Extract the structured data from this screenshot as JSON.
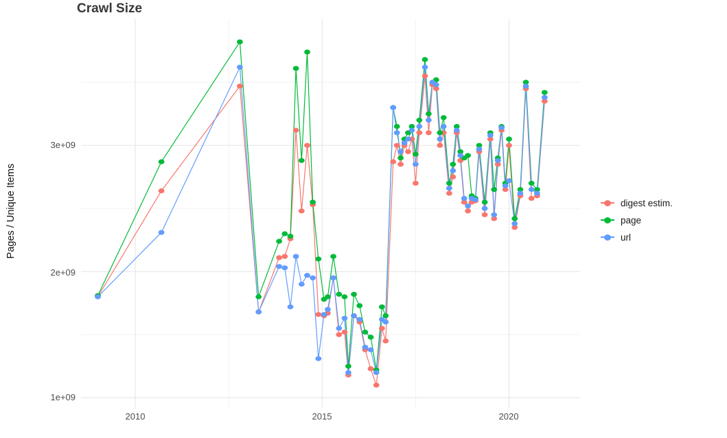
{
  "title": "Crawl Size",
  "colors": {
    "grid_major": "#e4e4e4",
    "grid_minor": "#f2f2f2",
    "axis_text": "#4d4d4d",
    "title_text": "#383838",
    "digest": "#F8766D",
    "page": "#00BA38",
    "url": "#619CFF"
  },
  "chart_data": {
    "type": "line",
    "title": "Crawl Size",
    "xlabel": "",
    "ylabel": "Pages / Unique Items",
    "grid": true,
    "legend_position": "right",
    "xlim": [
      2008.55,
      2021.9
    ],
    "ylim": [
      920000000.0,
      4000000000.0
    ],
    "x_ticks": [
      {
        "value": 2010,
        "label": "2010"
      },
      {
        "value": 2015,
        "label": "2015"
      },
      {
        "value": 2020,
        "label": "2020"
      }
    ],
    "x_minor_ticks": [
      2012.5,
      2017.5
    ],
    "y_ticks": [
      {
        "value": 1000000000.0,
        "label": "1e+09"
      },
      {
        "value": 2000000000.0,
        "label": "2e+09"
      },
      {
        "value": 3000000000.0,
        "label": "3e+09"
      }
    ],
    "y_minor_ticks": [
      1500000000.0,
      2500000000.0,
      3500000000.0
    ],
    "x": [
      2009.0,
      2010.7,
      2012.8,
      2013.3,
      2013.85,
      2014.0,
      2014.15,
      2014.3,
      2014.45,
      2014.6,
      2014.75,
      2014.9,
      2015.05,
      2015.15,
      2015.3,
      2015.45,
      2015.6,
      2015.7,
      2015.85,
      2016.0,
      2016.15,
      2016.3,
      2016.45,
      2016.6,
      2016.7,
      2016.9,
      2017.0,
      2017.1,
      2017.2,
      2017.3,
      2017.4,
      2017.5,
      2017.6,
      2017.75,
      2017.85,
      2017.95,
      2018.05,
      2018.15,
      2018.25,
      2018.4,
      2018.5,
      2018.6,
      2018.7,
      2018.8,
      2018.9,
      2019.0,
      2019.1,
      2019.2,
      2019.35,
      2019.5,
      2019.6,
      2019.7,
      2019.8,
      2019.9,
      2020.0,
      2020.15,
      2020.3,
      2020.45,
      2020.6,
      2020.75,
      2020.95
    ],
    "series": [
      {
        "name": "digest estim.",
        "color": "#F8766D",
        "values": [
          1800000000.0,
          2640000000.0,
          3470000000.0,
          1680000000.0,
          2110000000.0,
          2120000000.0,
          2260000000.0,
          3120000000.0,
          2480000000.0,
          3000000000.0,
          2530000000.0,
          1660000000.0,
          1650000000.0,
          1670000000.0,
          1950000000.0,
          1500000000.0,
          1520000000.0,
          1180000000.0,
          1650000000.0,
          1600000000.0,
          1380000000.0,
          1230000000.0,
          1100000000.0,
          1550000000.0,
          1450000000.0,
          2870000000.0,
          3000000000.0,
          2850000000.0,
          3000000000.0,
          2950000000.0,
          3050000000.0,
          2700000000.0,
          3100000000.0,
          3550000000.0,
          3100000000.0,
          3480000000.0,
          3450000000.0,
          3000000000.0,
          3100000000.0,
          2620000000.0,
          2750000000.0,
          3100000000.0,
          2880000000.0,
          2550000000.0,
          2480000000.0,
          2550000000.0,
          2560000000.0,
          2950000000.0,
          2450000000.0,
          3050000000.0,
          2420000000.0,
          2850000000.0,
          3120000000.0,
          2650000000.0,
          3000000000.0,
          2350000000.0,
          2600000000.0,
          3450000000.0,
          2580000000.0,
          2600000000.0,
          3350000000.0
        ]
      },
      {
        "name": "page",
        "color": "#00BA38",
        "values": [
          1810000000.0,
          2870000000.0,
          3820000000.0,
          1800000000.0,
          2240000000.0,
          2300000000.0,
          2280000000.0,
          3610000000.0,
          2880000000.0,
          3740000000.0,
          2550000000.0,
          2100000000.0,
          1780000000.0,
          1800000000.0,
          2120000000.0,
          1820000000.0,
          1800000000.0,
          1250000000.0,
          1820000000.0,
          1730000000.0,
          1520000000.0,
          1480000000.0,
          1220000000.0,
          1720000000.0,
          1650000000.0,
          3300000000.0,
          3150000000.0,
          2900000000.0,
          3050000000.0,
          3100000000.0,
          3150000000.0,
          2930000000.0,
          3200000000.0,
          3680000000.0,
          3250000000.0,
          3500000000.0,
          3520000000.0,
          3100000000.0,
          3220000000.0,
          2700000000.0,
          2850000000.0,
          3150000000.0,
          2950000000.0,
          2900000000.0,
          2920000000.0,
          2600000000.0,
          2580000000.0,
          3000000000.0,
          2550000000.0,
          3100000000.0,
          2650000000.0,
          2900000000.0,
          3150000000.0,
          2700000000.0,
          3050000000.0,
          2420000000.0,
          2650000000.0,
          3500000000.0,
          2700000000.0,
          2650000000.0,
          3420000000.0
        ]
      },
      {
        "name": "url",
        "color": "#619CFF",
        "values": [
          1800000000.0,
          2310000000.0,
          3620000000.0,
          1680000000.0,
          2040000000.0,
          2030000000.0,
          1720000000.0,
          2120000000.0,
          1900000000.0,
          1970000000.0,
          1950000000.0,
          1310000000.0,
          1660000000.0,
          1700000000.0,
          1950000000.0,
          1550000000.0,
          1630000000.0,
          1200000000.0,
          1650000000.0,
          1620000000.0,
          1400000000.0,
          1380000000.0,
          1200000000.0,
          1620000000.0,
          1600000000.0,
          3300000000.0,
          3100000000.0,
          2950000000.0,
          3020000000.0,
          3050000000.0,
          3120000000.0,
          2850000000.0,
          3150000000.0,
          3620000000.0,
          3200000000.0,
          3500000000.0,
          3480000000.0,
          3050000000.0,
          3150000000.0,
          2660000000.0,
          2800000000.0,
          3120000000.0,
          2920000000.0,
          2580000000.0,
          2520000000.0,
          2580000000.0,
          2570000000.0,
          2970000000.0,
          2500000000.0,
          3080000000.0,
          2450000000.0,
          2880000000.0,
          3140000000.0,
          2680000000.0,
          2720000000.0,
          2380000000.0,
          2620000000.0,
          3470000000.0,
          2650000000.0,
          2620000000.0,
          3380000000.0
        ]
      }
    ]
  }
}
